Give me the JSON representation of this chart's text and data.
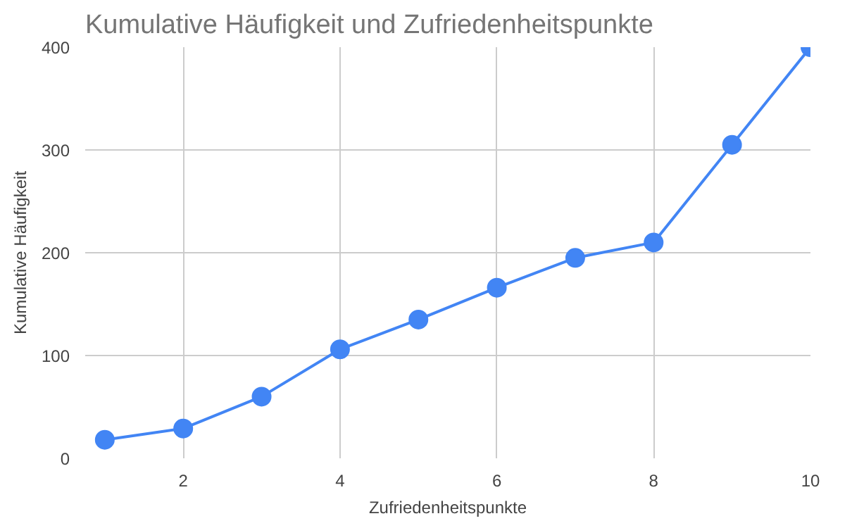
{
  "chart_data": {
    "type": "line",
    "title": "Kumulative Häufigkeit und Zufriedenheitspunkte",
    "xlabel": "Zufriedenheitspunkte",
    "ylabel": "Kumulative Häufigkeit",
    "x": [
      1,
      2,
      3,
      4,
      5,
      6,
      7,
      8,
      9,
      10
    ],
    "series": [
      {
        "color": "#4285f4",
        "values": [
          18,
          29,
          60,
          106,
          135,
          166,
          195,
          210,
          305,
          400
        ]
      }
    ],
    "xlim": [
      0.75,
      10
    ],
    "xticks": [
      2,
      4,
      6,
      8,
      10
    ],
    "ylim": [
      0,
      400
    ],
    "yticks": [
      0,
      100,
      200,
      300,
      400
    ],
    "grid": true,
    "marker": "circle",
    "line_style": "solid"
  }
}
